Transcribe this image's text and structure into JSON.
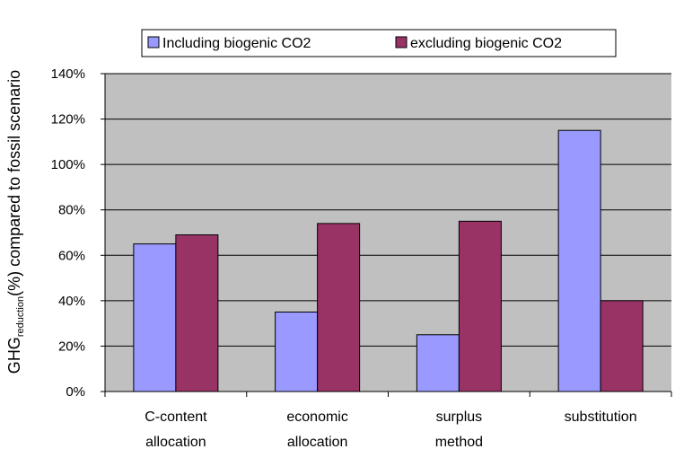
{
  "chart_data": {
    "type": "bar",
    "categories": [
      [
        "C-content",
        "allocation"
      ],
      [
        "economic",
        "allocation"
      ],
      [
        "surplus",
        "method"
      ],
      [
        "substitution"
      ]
    ],
    "series": [
      {
        "name": "Including biogenic CO2",
        "values": [
          65,
          35,
          25,
          115
        ],
        "color": "#9999ff"
      },
      {
        "name": "excluding biogenic CO2",
        "values": [
          69,
          74,
          75,
          40
        ],
        "color": "#993366"
      }
    ],
    "ylabel": {
      "main": "GHG",
      "sub": "reduction",
      "rest": "(%) compared to fossil scenario"
    },
    "ylim": [
      0,
      140
    ],
    "yticks": [
      "0%",
      "20%",
      "40%",
      "60%",
      "80%",
      "100%",
      "120%",
      "140%"
    ],
    "ytick_values": [
      0,
      20,
      40,
      60,
      80,
      100,
      120,
      140
    ],
    "plot_background": "#c0c0c0",
    "grid": true,
    "legend_position": "top"
  }
}
